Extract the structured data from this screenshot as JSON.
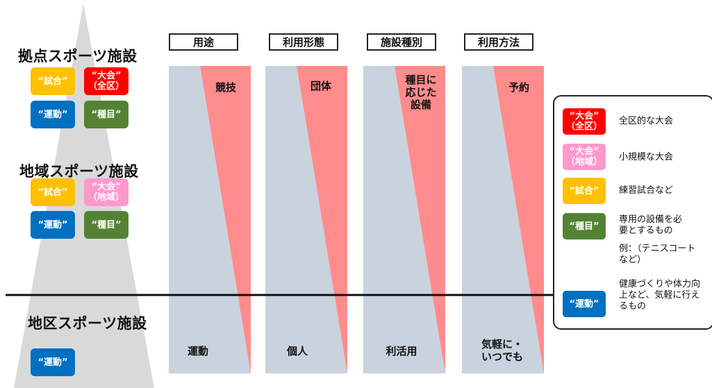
{
  "tiers": {
    "kyoten": {
      "title": "拠点スポーツ施設",
      "badges": [
        {
          "line1": "“試合”",
          "line2": ""
        },
        {
          "line1": "“大会”",
          "line2": "（全区）"
        },
        {
          "line1": "“運動”",
          "line2": ""
        },
        {
          "line1": "“種目”",
          "line2": ""
        }
      ]
    },
    "chiiki": {
      "title": "地域スポーツ施設",
      "badges": [
        {
          "line1": "“試合”",
          "line2": ""
        },
        {
          "line1": "“大会”",
          "line2": "（地域）"
        },
        {
          "line1": "“運動”",
          "line2": ""
        },
        {
          "line1": "“種目”",
          "line2": ""
        }
      ]
    },
    "chiku": {
      "title": "地区スポーツ施設",
      "badges": [
        {
          "line1": "“運動”",
          "line2": ""
        }
      ]
    }
  },
  "columns": [
    {
      "header": "用途",
      "top": [
        "競技"
      ],
      "bottom": [
        "運動"
      ]
    },
    {
      "header": "利用形態",
      "top": [
        "団体"
      ],
      "bottom": [
        "個人"
      ]
    },
    {
      "header": "施設種別",
      "top": [
        "種目に",
        "応じた",
        "設備"
      ],
      "bottom": [
        "利活用"
      ]
    },
    {
      "header": "利用方法",
      "top": [
        "予約"
      ],
      "bottom": [
        "気軽に・",
        "いつでも"
      ]
    }
  ],
  "legend": {
    "items": [
      {
        "badge1": "“大会”",
        "badge2": "（全区）",
        "desc": [
          "全区的な大会"
        ]
      },
      {
        "badge1": "“大会”",
        "badge2": "（地域）",
        "desc": [
          "小規模な大会"
        ]
      },
      {
        "badge1": "“試合”",
        "badge2": "",
        "desc": [
          "練習試合など"
        ]
      },
      {
        "badge1": "“種目”",
        "badge2": "",
        "desc": [
          "専用の設備を必",
          "要とするもの"
        ]
      },
      {
        "badge1": "",
        "badge2": "",
        "desc": [
          "例：（テニスコート",
          "など）"
        ]
      },
      {
        "badge1": "“運動”",
        "badge2": "",
        "desc": [
          "健康づくりや体力向",
          "上など、気軽に行え",
          "るもの"
        ]
      }
    ]
  },
  "colors": {
    "shiai": "#ffc000",
    "taikai_zenku": "#ff0000",
    "taikai_chiiki": "#ff99cc",
    "undo": "#0070c0",
    "shumoku": "#548235",
    "column_blue": "#c9d3de",
    "column_red": "#ff8c8c",
    "pyramid": "#d9d9d9"
  }
}
